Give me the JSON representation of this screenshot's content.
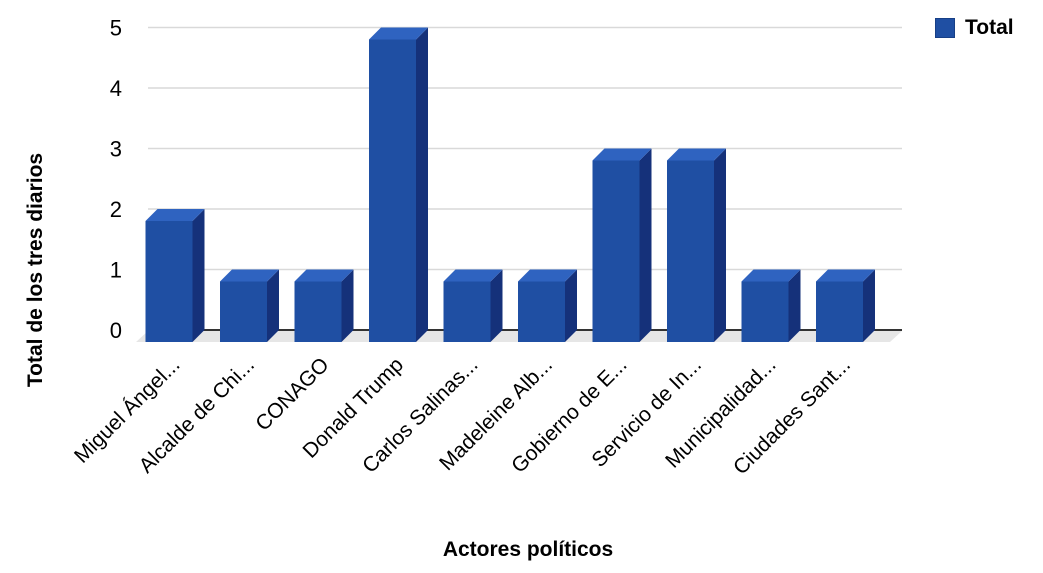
{
  "chart_data": {
    "type": "bar",
    "xlabel": "Actores políticos",
    "ylabel": "Total de los tres diarios",
    "categories": [
      "Miguel Ángel...",
      "Alcalde de Chi...",
      "CONAGO",
      "Donald Trump",
      "Carlos Salinas...",
      "Madeleine Alb...",
      "Gobierno de E...",
      "Servicio de In...",
      "Municipalidad...",
      "Ciudades Sant..."
    ],
    "series": [
      {
        "name": "Total",
        "values": [
          2,
          1,
          1,
          5,
          1,
          1,
          3,
          3,
          1,
          1
        ]
      }
    ],
    "ylim": [
      0,
      5
    ],
    "yticks": [
      0,
      1,
      2,
      3,
      4,
      5
    ],
    "grid": true,
    "legend_position": "top-right",
    "colors": {
      "bar_front": "#1f4fa3",
      "bar_side": "#15317a",
      "bar_top": "#2f63c0",
      "grid": "#d9d9d9",
      "floor": "#e6e6e6",
      "axis": "#333333"
    }
  }
}
